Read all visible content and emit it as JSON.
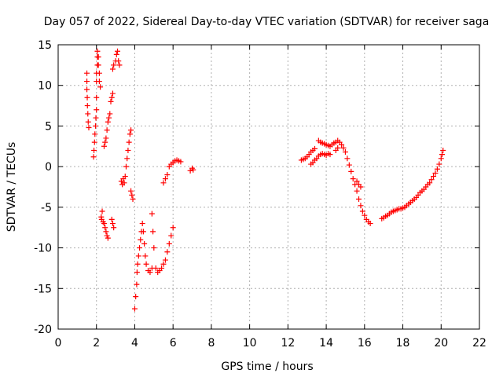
{
  "chart_data": {
    "type": "scatter",
    "title": "Day 057 of 2022, Sidereal Day-to-day VTEC variation (SDTVAR) for receiver saga",
    "xlabel": "GPS time / hours",
    "ylabel": "SDTVAR / TECUs",
    "xlim": [
      0,
      22
    ],
    "ylim": [
      -20,
      15
    ],
    "xticks": [
      0,
      2,
      4,
      6,
      8,
      10,
      12,
      14,
      16,
      18,
      20,
      22
    ],
    "yticks": [
      -20,
      -15,
      -10,
      -5,
      0,
      5,
      10,
      15
    ],
    "grid": true,
    "marker": "+",
    "series": [
      {
        "name": "SDTVAR",
        "color": "#ff0000",
        "points": [
          [
            1.5,
            11.5
          ],
          [
            1.5,
            10.5
          ],
          [
            1.5,
            9.5
          ],
          [
            1.52,
            8.5
          ],
          [
            1.53,
            7.5
          ],
          [
            1.55,
            6.5
          ],
          [
            1.57,
            5.5
          ],
          [
            1.6,
            4.8
          ],
          [
            1.85,
            1.2
          ],
          [
            1.87,
            2
          ],
          [
            1.9,
            3
          ],
          [
            1.92,
            4
          ],
          [
            1.95,
            5
          ],
          [
            1.97,
            6
          ],
          [
            2.0,
            7
          ],
          [
            2.0,
            8.5
          ],
          [
            2.0,
            10.5
          ],
          [
            2.0,
            11.5
          ],
          [
            2.05,
            12.5
          ],
          [
            2.05,
            13.5
          ],
          [
            2.05,
            14.2
          ],
          [
            2.1,
            13.5
          ],
          [
            2.1,
            12.5
          ],
          [
            2.15,
            11.5
          ],
          [
            2.15,
            10.5
          ],
          [
            2.2,
            9.8
          ],
          [
            2.25,
            -6.2
          ],
          [
            2.27,
            -6.5
          ],
          [
            2.3,
            -5.5
          ],
          [
            2.35,
            -6.8
          ],
          [
            2.4,
            -7
          ],
          [
            2.45,
            -7.5
          ],
          [
            2.5,
            -8
          ],
          [
            2.55,
            -8.5
          ],
          [
            2.6,
            -8.8
          ],
          [
            2.4,
            2.5
          ],
          [
            2.45,
            3
          ],
          [
            2.5,
            3.5
          ],
          [
            2.55,
            4.5
          ],
          [
            2.6,
            5.5
          ],
          [
            2.65,
            6
          ],
          [
            2.7,
            6.5
          ],
          [
            2.75,
            8
          ],
          [
            2.8,
            8.5
          ],
          [
            2.85,
            9
          ],
          [
            2.8,
            -6.5
          ],
          [
            2.85,
            -7
          ],
          [
            2.9,
            -7.5
          ],
          [
            2.85,
            12
          ],
          [
            2.9,
            12.5
          ],
          [
            3.0,
            13
          ],
          [
            3.05,
            13.8
          ],
          [
            3.1,
            14.2
          ],
          [
            3.15,
            13
          ],
          [
            3.2,
            12.5
          ],
          [
            3.3,
            -1.8
          ],
          [
            3.35,
            -2.2
          ],
          [
            3.4,
            -1.5
          ],
          [
            3.45,
            -2
          ],
          [
            3.5,
            -1.2
          ],
          [
            3.55,
            0
          ],
          [
            3.6,
            1
          ],
          [
            3.65,
            2
          ],
          [
            3.7,
            3
          ],
          [
            3.75,
            4
          ],
          [
            3.8,
            4.5
          ],
          [
            3.8,
            -3
          ],
          [
            3.85,
            -3.5
          ],
          [
            3.9,
            -4
          ],
          [
            4.0,
            -17.5
          ],
          [
            4.05,
            -16
          ],
          [
            4.1,
            -14.5
          ],
          [
            4.12,
            -13
          ],
          [
            4.15,
            -12
          ],
          [
            4.2,
            -11
          ],
          [
            4.25,
            -10
          ],
          [
            4.3,
            -9
          ],
          [
            4.35,
            -8
          ],
          [
            4.4,
            -7
          ],
          [
            4.45,
            -8
          ],
          [
            4.5,
            -9.5
          ],
          [
            4.55,
            -11
          ],
          [
            4.6,
            -12
          ],
          [
            4.7,
            -12.8
          ],
          [
            4.8,
            -13
          ],
          [
            4.9,
            -12.5
          ],
          [
            4.9,
            -5.8
          ],
          [
            4.95,
            -8
          ],
          [
            5.0,
            -10
          ],
          [
            5.1,
            -12.5
          ],
          [
            5.2,
            -13
          ],
          [
            5.3,
            -12.8
          ],
          [
            5.4,
            -12.5
          ],
          [
            5.5,
            -12
          ],
          [
            5.6,
            -11.5
          ],
          [
            5.7,
            -10.5
          ],
          [
            5.8,
            -9.5
          ],
          [
            5.9,
            -8.5
          ],
          [
            6.0,
            -7.5
          ],
          [
            5.5,
            -2
          ],
          [
            5.6,
            -1.5
          ],
          [
            5.7,
            -1
          ],
          [
            5.8,
            0
          ],
          [
            5.9,
            0.3
          ],
          [
            6.0,
            0.5
          ],
          [
            6.1,
            0.7
          ],
          [
            6.2,
            0.8
          ],
          [
            6.3,
            0.7
          ],
          [
            6.4,
            0.6
          ],
          [
            6.9,
            -0.5
          ],
          [
            7.0,
            -0.2
          ],
          [
            7.05,
            -0.4
          ],
          [
            12.7,
            0.8
          ],
          [
            12.8,
            0.9
          ],
          [
            12.9,
            1.0
          ],
          [
            13.0,
            1.2
          ],
          [
            13.1,
            1.5
          ],
          [
            13.2,
            1.8
          ],
          [
            13.3,
            2.0
          ],
          [
            13.4,
            2.2
          ],
          [
            13.2,
            0.3
          ],
          [
            13.3,
            0.5
          ],
          [
            13.4,
            0.8
          ],
          [
            13.5,
            1.0
          ],
          [
            13.6,
            1.3
          ],
          [
            13.7,
            1.5
          ],
          [
            13.8,
            1.6
          ],
          [
            13.9,
            1.5
          ],
          [
            14.0,
            1.4
          ],
          [
            14.1,
            1.6
          ],
          [
            14.2,
            1.5
          ],
          [
            13.6,
            3.2
          ],
          [
            13.7,
            3.0
          ],
          [
            13.8,
            2.9
          ],
          [
            13.9,
            2.8
          ],
          [
            14.0,
            2.7
          ],
          [
            14.1,
            2.6
          ],
          [
            14.2,
            2.5
          ],
          [
            14.3,
            2.7
          ],
          [
            14.4,
            2.9
          ],
          [
            14.5,
            3.0
          ],
          [
            14.6,
            3.2
          ],
          [
            14.7,
            3.0
          ],
          [
            14.8,
            2.7
          ],
          [
            14.9,
            2.3
          ],
          [
            15.0,
            1.8
          ],
          [
            15.1,
            1.0
          ],
          [
            15.2,
            0.2
          ],
          [
            15.3,
            -0.6
          ],
          [
            15.4,
            -1.5
          ],
          [
            15.5,
            -2.2
          ],
          [
            15.6,
            -3.0
          ],
          [
            15.7,
            -4.0
          ],
          [
            15.8,
            -4.8
          ],
          [
            15.9,
            -5.5
          ],
          [
            16.0,
            -6.0
          ],
          [
            16.1,
            -6.5
          ],
          [
            16.2,
            -6.8
          ],
          [
            16.3,
            -7.0
          ],
          [
            15.6,
            -1.8
          ],
          [
            15.7,
            -2.2
          ],
          [
            15.8,
            -2.5
          ],
          [
            14.5,
            2.0
          ],
          [
            14.6,
            2.3
          ],
          [
            16.9,
            -6.4
          ],
          [
            17.0,
            -6.3
          ],
          [
            17.1,
            -6.1
          ],
          [
            17.2,
            -6.0
          ],
          [
            17.3,
            -5.8
          ],
          [
            17.4,
            -5.6
          ],
          [
            17.5,
            -5.5
          ],
          [
            17.6,
            -5.4
          ],
          [
            17.7,
            -5.3
          ],
          [
            17.8,
            -5.2
          ],
          [
            17.9,
            -5.2
          ],
          [
            18.0,
            -5.1
          ],
          [
            18.1,
            -5.0
          ],
          [
            18.2,
            -4.8
          ],
          [
            18.3,
            -4.6
          ],
          [
            18.4,
            -4.4
          ],
          [
            18.5,
            -4.2
          ],
          [
            18.6,
            -4.0
          ],
          [
            18.7,
            -3.8
          ],
          [
            18.8,
            -3.5
          ],
          [
            18.9,
            -3.2
          ],
          [
            19.0,
            -3.0
          ],
          [
            19.1,
            -2.8
          ],
          [
            19.2,
            -2.5
          ],
          [
            19.3,
            -2.2
          ],
          [
            19.4,
            -2.0
          ],
          [
            19.5,
            -1.6
          ],
          [
            19.6,
            -1.2
          ],
          [
            19.7,
            -0.8
          ],
          [
            19.8,
            -0.3
          ],
          [
            19.9,
            0.3
          ],
          [
            20.0,
            1.0
          ],
          [
            20.05,
            1.5
          ],
          [
            20.1,
            2.0
          ]
        ]
      }
    ]
  }
}
